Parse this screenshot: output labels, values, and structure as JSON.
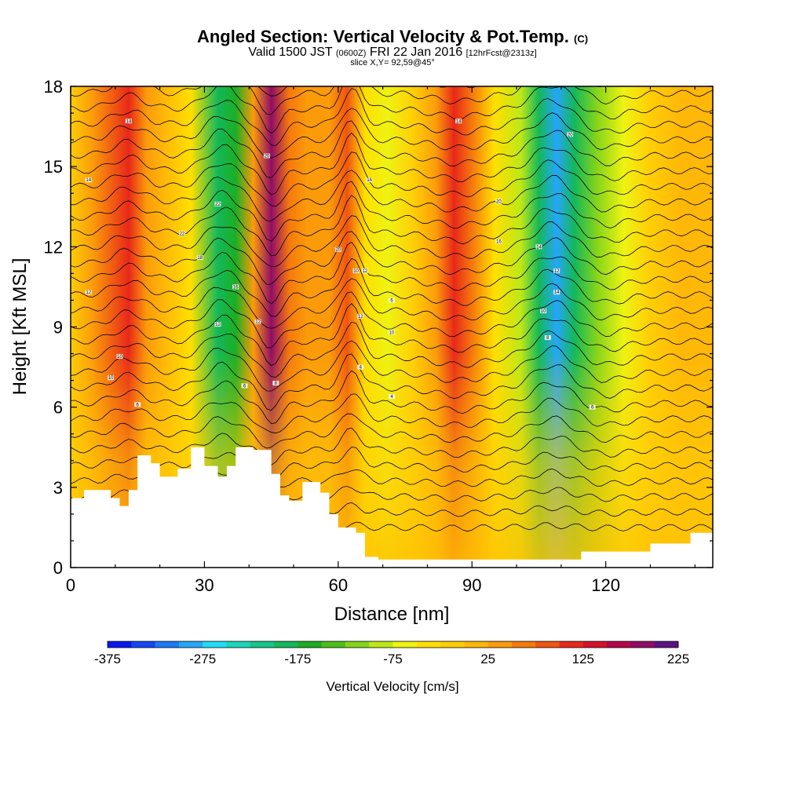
{
  "title": {
    "main": "Angled Section: Vertical Velocity & Pot.Temp.",
    "main_suffix": "(C)",
    "sub_valid": "Valid 1500 JST",
    "sub_utc": "(0600Z)",
    "sub_date": "FRI 22 Jan 2016",
    "sub_fcst": "[12hrFcst@2313z]",
    "slice": "slice X,Y= 92,59@45°"
  },
  "chart_data": {
    "type": "heatmap",
    "xlabel": "Distance [nm]",
    "ylabel": "Height [Kft MSL]",
    "xlim": [
      0,
      144
    ],
    "ylim": [
      0,
      18
    ],
    "x_ticks": [
      "0",
      "30",
      "60",
      "90",
      "120"
    ],
    "x_tick_values": [
      0,
      30,
      60,
      90,
      120
    ],
    "y_ticks": [
      "0",
      "3",
      "6",
      "9",
      "12",
      "15",
      "18"
    ],
    "y_tick_values": [
      0,
      3,
      6,
      9,
      12,
      15,
      18
    ],
    "colorbar": {
      "label": "Vertical Velocity [cm/s]",
      "min": -375,
      "max": 225,
      "step": 25,
      "tick_labels": [
        "-375",
        "-275",
        "-175",
        "-75",
        "25",
        "125",
        "225"
      ],
      "tick_values": [
        -375,
        -275,
        -175,
        -75,
        25,
        125,
        225
      ],
      "colors": [
        "#0a18ee",
        "#1247f2",
        "#1c78f5",
        "#25a6f8",
        "#22dcf8",
        "#1ad6b8",
        "#16c68a",
        "#14b85a",
        "#1cae24",
        "#4cc01a",
        "#86d41a",
        "#bde818",
        "#eef312",
        "#ffdf00",
        "#ffcd06",
        "#ffb708",
        "#fb9b0a",
        "#f5790c",
        "#ef5510",
        "#e8281a",
        "#d4122e",
        "#b4084a",
        "#900c66",
        "#5c1284"
      ]
    },
    "vertical_velocity_bands": [
      {
        "x": 0,
        "w": -10
      },
      {
        "x": 5,
        "w": 40
      },
      {
        "x": 13,
        "w": 110
      },
      {
        "x": 17,
        "w": 40
      },
      {
        "x": 21,
        "w": 10
      },
      {
        "x": 27,
        "w": -40
      },
      {
        "x": 33,
        "w": -190
      },
      {
        "x": 37,
        "w": -170
      },
      {
        "x": 41,
        "w": 40
      },
      {
        "x": 45,
        "w": 190
      },
      {
        "x": 49,
        "w": 60
      },
      {
        "x": 53,
        "w": 30
      },
      {
        "x": 58,
        "w": 40
      },
      {
        "x": 62,
        "w": 80
      },
      {
        "x": 66,
        "w": -40
      },
      {
        "x": 71,
        "w": -70
      },
      {
        "x": 77,
        "w": -10
      },
      {
        "x": 82,
        "w": 40
      },
      {
        "x": 86,
        "w": 110
      },
      {
        "x": 90,
        "w": 50
      },
      {
        "x": 95,
        "w": -30
      },
      {
        "x": 101,
        "w": -80
      },
      {
        "x": 105,
        "w": -190
      },
      {
        "x": 109,
        "w": -300
      },
      {
        "x": 113,
        "w": -190
      },
      {
        "x": 118,
        "w": -120
      },
      {
        "x": 124,
        "w": -60
      },
      {
        "x": 130,
        "w": -20
      },
      {
        "x": 137,
        "w": 10
      },
      {
        "x": 144,
        "w": 20
      }
    ],
    "terrain_height_kft": [
      {
        "x": 0,
        "h": 2.6
      },
      {
        "x": 3,
        "h": 2.9
      },
      {
        "x": 9,
        "h": 2.6
      },
      {
        "x": 11,
        "h": 2.3
      },
      {
        "x": 13,
        "h": 2.9
      },
      {
        "x": 15,
        "h": 4.2
      },
      {
        "x": 18,
        "h": 3.9
      },
      {
        "x": 20,
        "h": 3.4
      },
      {
        "x": 24,
        "h": 3.7
      },
      {
        "x": 27,
        "h": 4.5
      },
      {
        "x": 30,
        "h": 3.8
      },
      {
        "x": 33,
        "h": 3.4
      },
      {
        "x": 35,
        "h": 3.8
      },
      {
        "x": 37,
        "h": 4.5
      },
      {
        "x": 41,
        "h": 4.4
      },
      {
        "x": 45,
        "h": 3.5
      },
      {
        "x": 47,
        "h": 2.7
      },
      {
        "x": 49,
        "h": 2.5
      },
      {
        "x": 52,
        "h": 3.2
      },
      {
        "x": 56,
        "h": 2.8
      },
      {
        "x": 58,
        "h": 2.0
      },
      {
        "x": 60,
        "h": 1.5
      },
      {
        "x": 64,
        "h": 1.3
      },
      {
        "x": 66,
        "h": 0.4
      },
      {
        "x": 69,
        "h": 0.3
      },
      {
        "x": 100,
        "h": 0.3
      },
      {
        "x": 114,
        "h": 0.3
      },
      {
        "x": 114.5,
        "h": 0.6
      },
      {
        "x": 129,
        "h": 0.6
      },
      {
        "x": 130,
        "h": 0.9
      },
      {
        "x": 138,
        "h": 0.9
      },
      {
        "x": 139,
        "h": 1.3
      },
      {
        "x": 144,
        "h": 1.3
      }
    ],
    "potential_temperature_contour_labels": [
      {
        "text": "14",
        "x": 13,
        "y": 16.7
      },
      {
        "text": "14",
        "x": 4,
        "y": 14.5
      },
      {
        "text": "12",
        "x": 4,
        "y": 10.3
      },
      {
        "text": "10",
        "x": 11,
        "y": 7.9
      },
      {
        "text": "10",
        "x": 9,
        "y": 7.1
      },
      {
        "text": "6",
        "x": 15,
        "y": 6.1
      },
      {
        "text": "20",
        "x": 44,
        "y": 15.4
      },
      {
        "text": "22",
        "x": 33,
        "y": 13.6
      },
      {
        "text": "22",
        "x": 25,
        "y": 12.5
      },
      {
        "text": "18",
        "x": 29,
        "y": 11.6
      },
      {
        "text": "16",
        "x": 37,
        "y": 10.5
      },
      {
        "text": "12",
        "x": 33,
        "y": 9.1
      },
      {
        "text": "12",
        "x": 42,
        "y": 9.2
      },
      {
        "text": "6",
        "x": 39,
        "y": 6.8
      },
      {
        "text": "8",
        "x": 46,
        "y": 6.9
      },
      {
        "text": "16",
        "x": 67,
        "y": 14.5
      },
      {
        "text": "20",
        "x": 60,
        "y": 11.9
      },
      {
        "text": "10",
        "x": 64,
        "y": 11.1
      },
      {
        "text": "12",
        "x": 66,
        "y": 11.1
      },
      {
        "text": "6",
        "x": 72,
        "y": 10.0
      },
      {
        "text": "12",
        "x": 65,
        "y": 9.4
      },
      {
        "text": "10",
        "x": 72,
        "y": 8.8
      },
      {
        "text": "4",
        "x": 65,
        "y": 7.5
      },
      {
        "text": "4",
        "x": 72,
        "y": 6.4
      },
      {
        "text": "14",
        "x": 87,
        "y": 16.7
      },
      {
        "text": "20",
        "x": 96,
        "y": 13.7
      },
      {
        "text": "16",
        "x": 96,
        "y": 12.2
      },
      {
        "text": "20",
        "x": 112,
        "y": 16.2
      },
      {
        "text": "14",
        "x": 105,
        "y": 12.0
      },
      {
        "text": "12",
        "x": 109,
        "y": 11.1
      },
      {
        "text": "14",
        "x": 109,
        "y": 10.3
      },
      {
        "text": "10",
        "x": 106,
        "y": 9.6
      },
      {
        "text": "8",
        "x": 107,
        "y": 8.6
      },
      {
        "text": "6",
        "x": 117,
        "y": 6.0
      }
    ]
  }
}
